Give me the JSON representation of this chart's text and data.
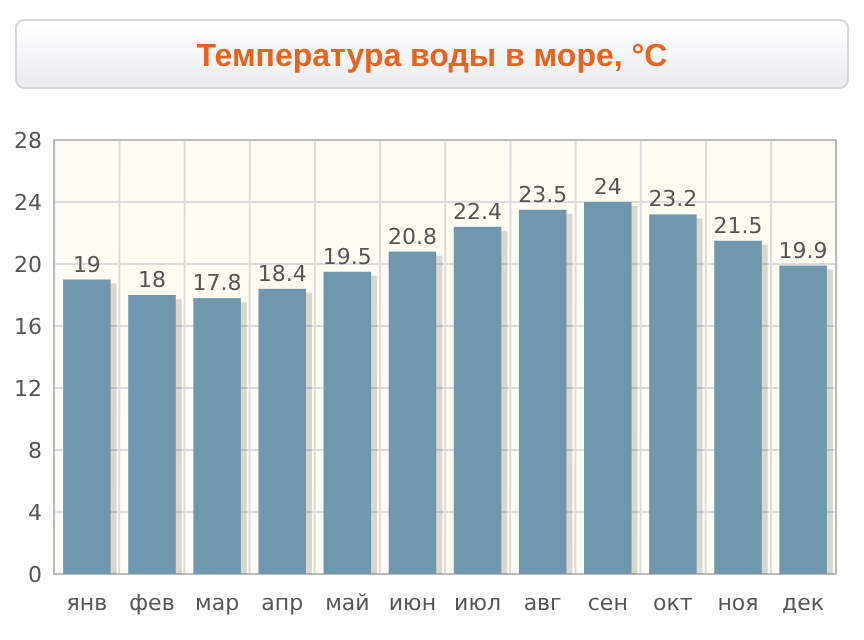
{
  "chart_data": {
    "type": "bar",
    "title": "Температура воды в море, °C",
    "categories": [
      "янв",
      "фев",
      "мар",
      "апр",
      "май",
      "июн",
      "июл",
      "авг",
      "сен",
      "окт",
      "ноя",
      "дек"
    ],
    "values": [
      19,
      18,
      17.8,
      18.4,
      19.5,
      20.8,
      22.4,
      23.5,
      24,
      23.2,
      21.5,
      19.9
    ],
    "color": "#6f98ae",
    "ylim": [
      0,
      28
    ],
    "yticks": [
      0,
      4,
      8,
      12,
      16,
      20,
      24,
      28
    ],
    "grid": true,
    "data_labels": true
  }
}
